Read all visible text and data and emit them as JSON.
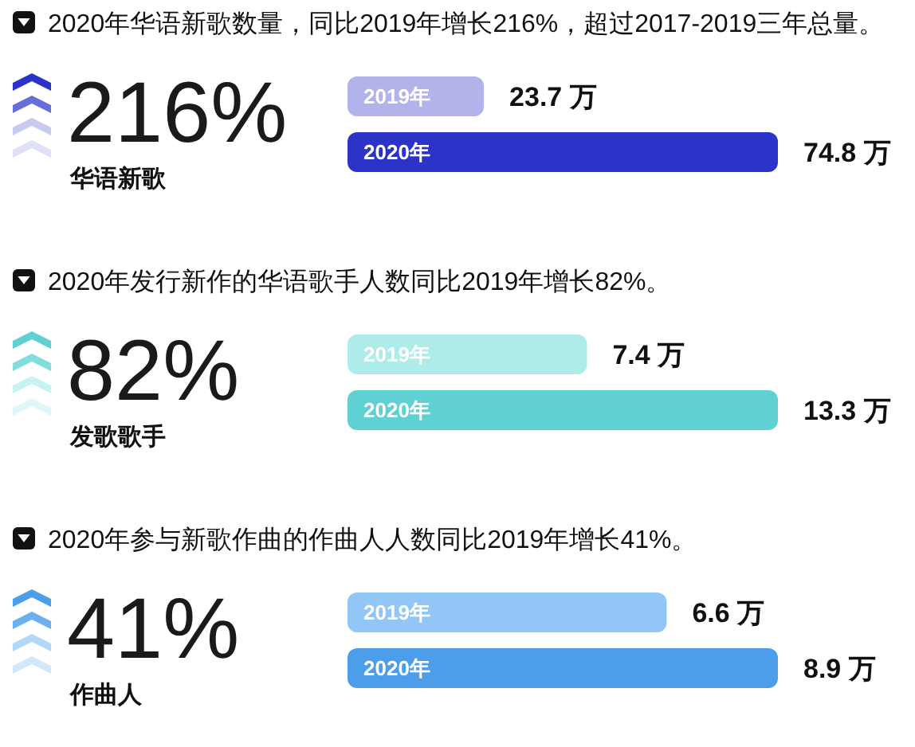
{
  "chart_data": [
    {
      "type": "bar",
      "orientation": "horizontal",
      "title": "2020年华语新歌数量，同比2019年增长216%，超过2017-2019三年总量。",
      "annotations": [
        "216%",
        "华语新歌"
      ],
      "categories": [
        "2019年",
        "2020年"
      ],
      "values": [
        23.7,
        74.8
      ],
      "colors": [
        "#b1b3ea",
        "#2c33c8"
      ],
      "value_labels": [
        "23.7 万",
        "74.8 万"
      ]
    },
    {
      "type": "bar",
      "orientation": "horizontal",
      "title": "2020年发行新作的华语歌手人数同比2019年增长82%。",
      "annotations": [
        "82%",
        "发歌歌手"
      ],
      "categories": [
        "2019年",
        "2020年"
      ],
      "values": [
        7.4,
        13.3
      ],
      "colors": [
        "#aeecea",
        "#5fd1d2"
      ],
      "value_labels": [
        "7.4 万",
        "13.3 万"
      ]
    },
    {
      "type": "bar",
      "orientation": "horizontal",
      "title": "2020年参与新歌作曲的作曲人人数同比2019年增长41%。",
      "annotations": [
        "41%",
        "作曲人"
      ],
      "categories": [
        "2019年",
        "2020年"
      ],
      "values": [
        6.6,
        8.9
      ],
      "colors": [
        "#92c6f6",
        "#4d9eea"
      ],
      "value_labels": [
        "6.6 万",
        "8.9 万"
      ]
    }
  ]
}
